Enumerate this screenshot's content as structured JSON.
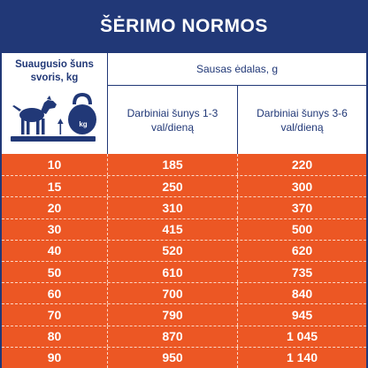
{
  "header": {
    "title": "ŠĖRIMO NORMOS"
  },
  "columns": {
    "weight_label": "Suaugusio šuns svoris, kg",
    "dry_food_label": "Sausas ėdalas, g",
    "sub_1_label": "Darbiniai šunys 1-3 val/dieną",
    "sub_2_label": "Darbiniai šunys 3-6 val/dieną"
  },
  "graphic": {
    "icon": "dog-and-kettlebell-icon",
    "kettlebell_label": "kg"
  },
  "colors": {
    "navy": "#213877",
    "orange": "#ec5724"
  },
  "rows": [
    {
      "weight": "10",
      "work_1_3": "185",
      "work_3_6": "220"
    },
    {
      "weight": "15",
      "work_1_3": "250",
      "work_3_6": "300"
    },
    {
      "weight": "20",
      "work_1_3": "310",
      "work_3_6": "370"
    },
    {
      "weight": "30",
      "work_1_3": "415",
      "work_3_6": "500"
    },
    {
      "weight": "40",
      "work_1_3": "520",
      "work_3_6": "620"
    },
    {
      "weight": "50",
      "work_1_3": "610",
      "work_3_6": "735"
    },
    {
      "weight": "60",
      "work_1_3": "700",
      "work_3_6": "840"
    },
    {
      "weight": "70",
      "work_1_3": "790",
      "work_3_6": "945"
    },
    {
      "weight": "80",
      "work_1_3": "870",
      "work_3_6": "1 045"
    },
    {
      "weight": "90",
      "work_1_3": "950",
      "work_3_6": "1 140"
    }
  ]
}
